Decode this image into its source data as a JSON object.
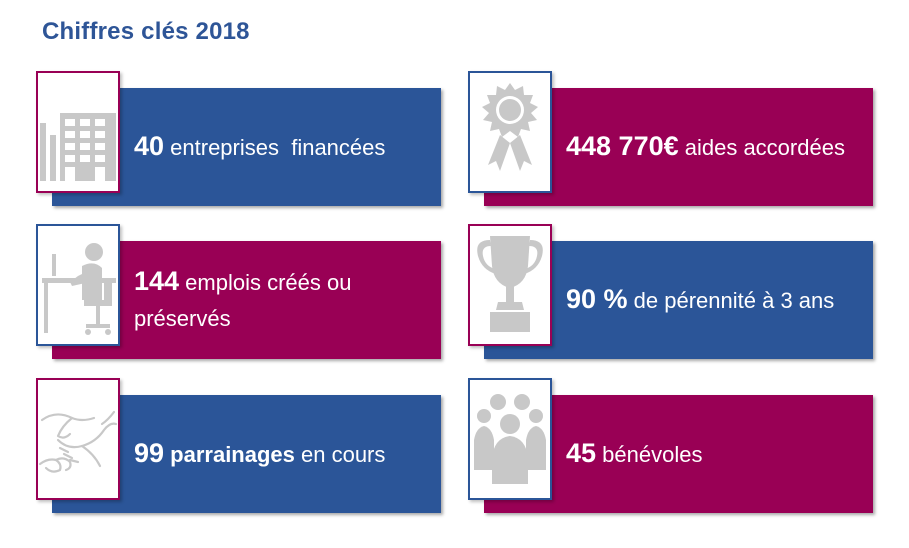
{
  "title": "Chiffres clés 2018",
  "colors": {
    "blue": "#2b5598",
    "purple": "#990055",
    "icon_gray": "#c8c8c8"
  },
  "cards": [
    {
      "icon": "office-building-icon",
      "number": "40",
      "bold_extra": "",
      "text": " entreprises  financées"
    },
    {
      "icon": "award-ribbon-icon",
      "number": "448 770€",
      "bold_extra": "",
      "text": " aides accordées"
    },
    {
      "icon": "desk-worker-icon",
      "number": "144",
      "bold_extra": "",
      "text": " emplois créés ou préservés"
    },
    {
      "icon": "trophy-icon",
      "number": "90 %",
      "bold_extra": "",
      "text": " de pérennité à 3 ans"
    },
    {
      "icon": "handshake-icon",
      "number": "99",
      "bold_extra": " parrainages",
      "text": " en cours"
    },
    {
      "icon": "group-people-icon",
      "number": "45",
      "bold_extra": "",
      "text": " bénévoles"
    }
  ]
}
